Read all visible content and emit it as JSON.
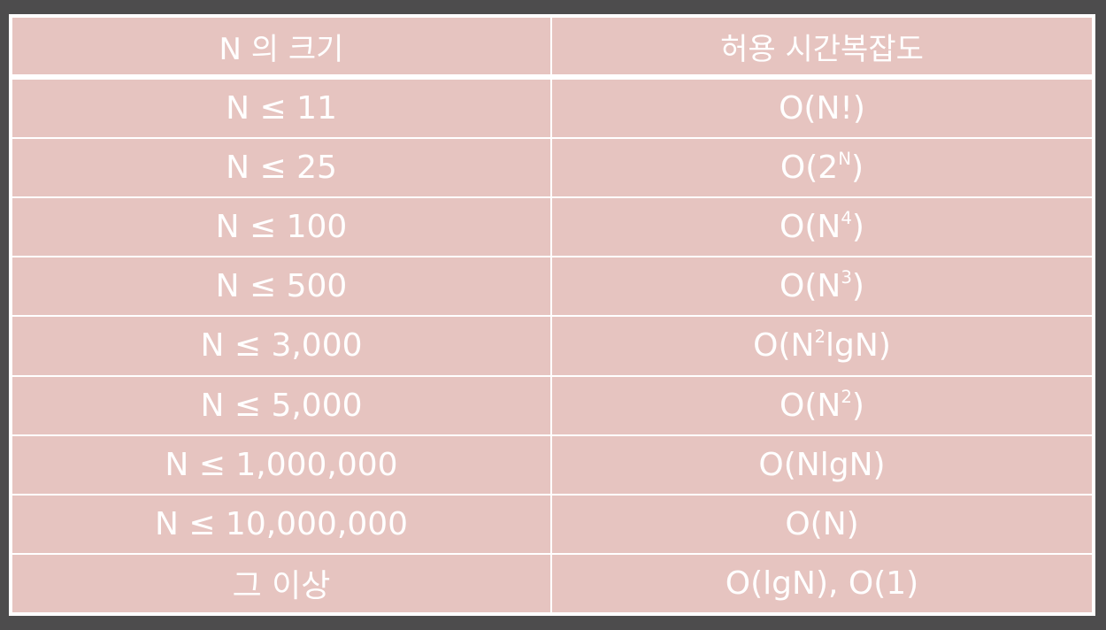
{
  "table": {
    "headers": [
      "N 의 크기",
      "허용 시간복잡도"
    ],
    "rows": [
      {
        "size": "N ≤ 11",
        "complexity": {
          "pre": "O(N!)",
          "sup": "",
          "post": ""
        }
      },
      {
        "size": "N ≤ 25",
        "complexity": {
          "pre": "O(2",
          "sup": "N",
          "post": ")"
        }
      },
      {
        "size": "N ≤ 100",
        "complexity": {
          "pre": "O(N",
          "sup": "4",
          "post": ")"
        }
      },
      {
        "size": "N ≤ 500",
        "complexity": {
          "pre": "O(N",
          "sup": "3",
          "post": ")"
        }
      },
      {
        "size": "N ≤ 3,000",
        "complexity": {
          "pre": "O(N",
          "sup": "2",
          "post": "lgN)"
        }
      },
      {
        "size": "N ≤ 5,000",
        "complexity": {
          "pre": "O(N",
          "sup": "2",
          "post": ")"
        }
      },
      {
        "size": "N ≤ 1,000,000",
        "complexity": {
          "pre": "O(NlgN)",
          "sup": "",
          "post": ""
        }
      },
      {
        "size": "N ≤ 10,000,000",
        "complexity": {
          "pre": "O(N)",
          "sup": "",
          "post": ""
        }
      },
      {
        "size": "그 이상",
        "complexity": {
          "pre": "O(lgN), O(1)",
          "sup": "",
          "post": ""
        }
      }
    ]
  }
}
